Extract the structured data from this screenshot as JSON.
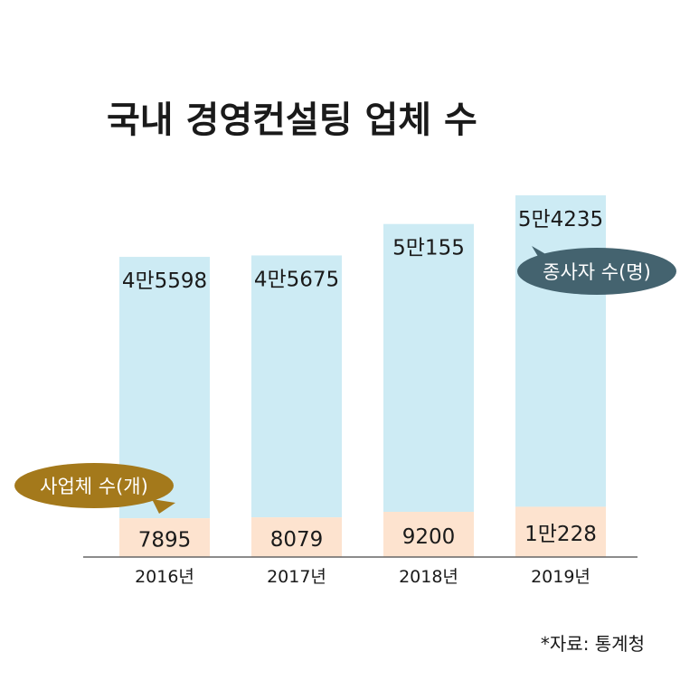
{
  "title": "국내 경영컨설팅 업체 수",
  "source": "*자료: 통계청",
  "chart_data": {
    "type": "bar",
    "stacked": true,
    "categories": [
      "2016년",
      "2017년",
      "2018년",
      "2019년"
    ],
    "series": [
      {
        "name": "사업체 수(개)",
        "values": [
          7895,
          8079,
          9200,
          10228
        ],
        "labels": [
          "7895",
          "8079",
          "9200",
          "1만228"
        ],
        "color": "#fde3cf"
      },
      {
        "name": "종사자 수(명)",
        "values": [
          45598,
          45675,
          50155,
          54235
        ],
        "labels": [
          "4만5598",
          "4만5675",
          "5만155",
          "5만4235"
        ],
        "color": "#cdebf4"
      }
    ],
    "callout_colors": {
      "사업체 수(개)": "#a4791b",
      "종사자 수(명)": "#44636f"
    }
  }
}
